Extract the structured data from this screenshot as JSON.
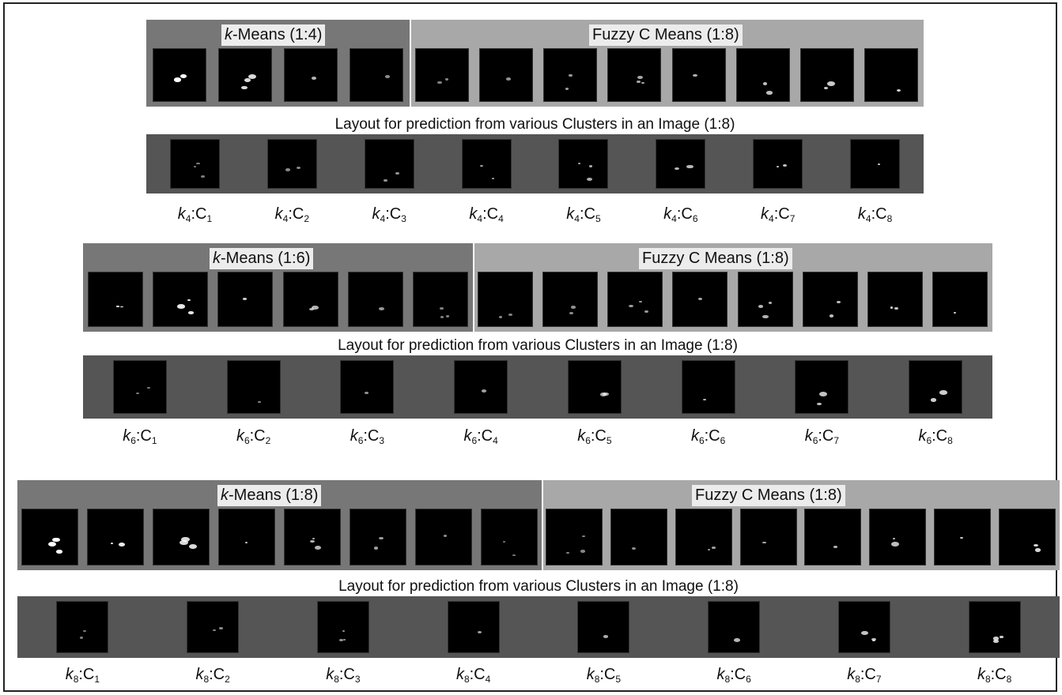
{
  "sections": [
    {
      "kmeans_title": [
        "k",
        "-Means (1:4)"
      ],
      "fcm_title": "Fuzzy C Means (1:8)",
      "caption": "Layout for prediction from various Clusters in an Image (1:8)",
      "cluster_labels": [
        [
          "k",
          "4",
          ":C",
          "1"
        ],
        [
          "k",
          "4",
          ":C",
          "2"
        ],
        [
          "k",
          "4",
          ":C",
          "3"
        ],
        [
          "k",
          "4",
          ":C",
          "4"
        ],
        [
          "k",
          "4",
          ":C",
          "5"
        ],
        [
          "k",
          "4",
          ":C",
          "6"
        ],
        [
          "k",
          "4",
          ":C",
          "7"
        ],
        [
          "k",
          "4",
          ":C",
          "8"
        ]
      ]
    },
    {
      "kmeans_title": [
        "k",
        "-Means (1:6)"
      ],
      "fcm_title": "Fuzzy C Means (1:8)",
      "caption": "Layout for prediction from various Clusters in an Image (1:8)",
      "cluster_labels": [
        [
          "k",
          "6",
          ":C",
          "1"
        ],
        [
          "k",
          "6",
          ":C",
          "2"
        ],
        [
          "k",
          "6",
          ":C",
          "3"
        ],
        [
          "k",
          "6",
          ":C",
          "4"
        ],
        [
          "k",
          "6",
          ":C",
          "5"
        ],
        [
          "k",
          "6",
          ":C",
          "6"
        ],
        [
          "k",
          "6",
          ":C",
          "7"
        ],
        [
          "k",
          "6",
          ":C",
          "8"
        ]
      ]
    },
    {
      "kmeans_title": [
        "k",
        "-Means (1:8)"
      ],
      "fcm_title": "Fuzzy C Means (1:8)",
      "caption": "Layout for prediction from various Clusters in an Image (1:8)",
      "cluster_labels": [
        [
          "k",
          "8",
          ":C",
          "1"
        ],
        [
          "k",
          "8",
          ":C",
          "2"
        ],
        [
          "k",
          "8",
          ":C",
          "3"
        ],
        [
          "k",
          "8",
          ":C",
          "4"
        ],
        [
          "k",
          "8",
          ":C",
          "5"
        ],
        [
          "k",
          "8",
          ":C",
          "6"
        ],
        [
          "k",
          "8",
          ":C",
          "7"
        ],
        [
          "k",
          "8",
          ":C",
          "8"
        ]
      ]
    }
  ]
}
